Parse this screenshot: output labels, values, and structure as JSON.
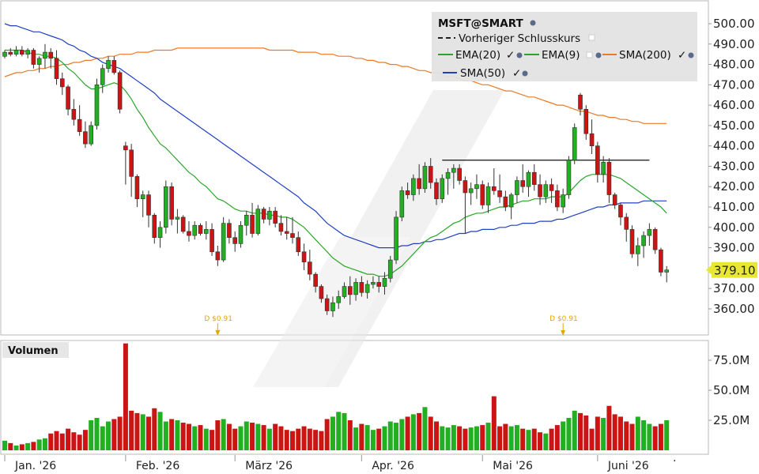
{
  "chart_data": [
    {
      "type": "candlestick",
      "symbol": "MSFT@SMART",
      "legend": {
        "entries": [
          {
            "label": "Vorheriger Schlusskurs",
            "color": "#222222",
            "style": "dashed"
          },
          {
            "label": "EMA(20)",
            "color": "#2aa52a"
          },
          {
            "label": "EMA(9)",
            "color": "#2aa52a"
          },
          {
            "label": "SMA(200)",
            "color": "#f07820"
          },
          {
            "label": "SMA(50)",
            "color": "#2040c0"
          }
        ],
        "placement": "top-right"
      },
      "ylim": [
        350,
        505
      ],
      "y_ticks": [
        "500.00",
        "490.00",
        "480.00",
        "470.00",
        "460.00",
        "450.00",
        "440.00",
        "430.00",
        "420.00",
        "410.00",
        "400.00",
        "390.00",
        "380.00",
        "370.00",
        "360.00"
      ],
      "y_tick_values": [
        500,
        490,
        480,
        470,
        460,
        450,
        440,
        430,
        420,
        410,
        400,
        390,
        380,
        370,
        360
      ],
      "x_months": [
        {
          "label": "Jan. '26",
          "day": 0
        },
        {
          "label": "Feb. '26",
          "day": 21
        },
        {
          "label": "März '26",
          "day": 40
        },
        {
          "label": "Apr. '26",
          "day": 62
        },
        {
          "label": "Mai '26",
          "day": 83
        },
        {
          "label": "Juni '26",
          "day": 103
        }
      ],
      "last_price": "379.10",
      "last_price_value": 379.1,
      "resistance_line": {
        "from_day": 76,
        "to_day": 112,
        "value": 433
      },
      "dividends": [
        {
          "label": "D $0.91",
          "day": 37
        },
        {
          "label": "D $0.91",
          "day": 97
        }
      ],
      "ohlc": [
        [
          484,
          487,
          483,
          486
        ],
        [
          486,
          488,
          484,
          485
        ],
        [
          485,
          489,
          484,
          487
        ],
        [
          487,
          489,
          484,
          485
        ],
        [
          485,
          488,
          483,
          487
        ],
        [
          487,
          488,
          478,
          480
        ],
        [
          480,
          484,
          476,
          483
        ],
        [
          483,
          490,
          478,
          486
        ],
        [
          486,
          488,
          478,
          483
        ],
        [
          483,
          487,
          470,
          473
        ],
        [
          473,
          476,
          465,
          469
        ],
        [
          469,
          470,
          455,
          458
        ],
        [
          458,
          463,
          450,
          453
        ],
        [
          453,
          460,
          445,
          447
        ],
        [
          447,
          452,
          439,
          441
        ],
        [
          441,
          452,
          440,
          450
        ],
        [
          450,
          473,
          448,
          470
        ],
        [
          470,
          480,
          466,
          478
        ],
        [
          478,
          484,
          476,
          482
        ],
        [
          482,
          484,
          475,
          476
        ],
        [
          476,
          477,
          456,
          458
        ],
        [
          440,
          442,
          421,
          438
        ],
        [
          438,
          441,
          415,
          425
        ],
        [
          425,
          426,
          410,
          414
        ],
        [
          414,
          418,
          405,
          416
        ],
        [
          416,
          418,
          400,
          406
        ],
        [
          406,
          407,
          392,
          395
        ],
        [
          395,
          403,
          390,
          400
        ],
        [
          400,
          423,
          397,
          420
        ],
        [
          420,
          422,
          401,
          404
        ],
        [
          404,
          409,
          397,
          405
        ],
        [
          405,
          406,
          397,
          398
        ],
        [
          398,
          403,
          393,
          396
        ],
        [
          396,
          403,
          394,
          401
        ],
        [
          401,
          402,
          396,
          397
        ],
        [
          397,
          403,
          394,
          399
        ],
        [
          399,
          402,
          386,
          388
        ],
        [
          388,
          391,
          381,
          384
        ],
        [
          384,
          405,
          383,
          402
        ],
        [
          402,
          404,
          392,
          395
        ],
        [
          395,
          398,
          388,
          392
        ],
        [
          392,
          403,
          390,
          401
        ],
        [
          401,
          408,
          396,
          406
        ],
        [
          406,
          412,
          395,
          397
        ],
        [
          397,
          411,
          396,
          409
        ],
        [
          409,
          410,
          402,
          404
        ],
        [
          404,
          410,
          401,
          408
        ],
        [
          408,
          410,
          400,
          402
        ],
        [
          402,
          406,
          396,
          398
        ],
        [
          398,
          405,
          394,
          397
        ],
        [
          397,
          405,
          392,
          395
        ],
        [
          395,
          398,
          386,
          388
        ],
        [
          388,
          392,
          379,
          383
        ],
        [
          383,
          389,
          374,
          377
        ],
        [
          377,
          378,
          368,
          371
        ],
        [
          371,
          372,
          363,
          365
        ],
        [
          365,
          367,
          357,
          359
        ],
        [
          359,
          366,
          356,
          363
        ],
        [
          363,
          369,
          360,
          366
        ],
        [
          366,
          373,
          365,
          371
        ],
        [
          371,
          376,
          362,
          367
        ],
        [
          367,
          375,
          364,
          373
        ],
        [
          373,
          376,
          366,
          368
        ],
        [
          368,
          374,
          365,
          372
        ],
        [
          372,
          376,
          370,
          373
        ],
        [
          373,
          376,
          368,
          371
        ],
        [
          371,
          378,
          367,
          375
        ],
        [
          375,
          386,
          373,
          384
        ],
        [
          384,
          408,
          382,
          405
        ],
        [
          405,
          420,
          403,
          418
        ],
        [
          418,
          422,
          414,
          416
        ],
        [
          416,
          426,
          413,
          424
        ],
        [
          424,
          431,
          416,
          419
        ],
        [
          419,
          432,
          417,
          430
        ],
        [
          430,
          434,
          419,
          422
        ],
        [
          422,
          424,
          411,
          414
        ],
        [
          414,
          426,
          412,
          424
        ],
        [
          424,
          429,
          416,
          427
        ],
        [
          427,
          431,
          419,
          429
        ],
        [
          429,
          431,
          421,
          423
        ],
        [
          423,
          425,
          397,
          417
        ],
        [
          417,
          422,
          411,
          419
        ],
        [
          419,
          426,
          414,
          421
        ],
        [
          421,
          423,
          409,
          411
        ],
        [
          411,
          422,
          407,
          420
        ],
        [
          420,
          429,
          416,
          418
        ],
        [
          418,
          426,
          412,
          415
        ],
        [
          415,
          418,
          408,
          410
        ],
        [
          410,
          417,
          404,
          416
        ],
        [
          416,
          425,
          412,
          423
        ],
        [
          423,
          431,
          417,
          420
        ],
        [
          420,
          428,
          415,
          427
        ],
        [
          427,
          431,
          418,
          421
        ],
        [
          421,
          426,
          411,
          415
        ],
        [
          415,
          423,
          412,
          421
        ],
        [
          421,
          424,
          412,
          418
        ],
        [
          418,
          421,
          408,
          410
        ],
        [
          410,
          419,
          407,
          416
        ],
        [
          416,
          435,
          414,
          433
        ],
        [
          433,
          451,
          431,
          449
        ],
        [
          465,
          466,
          455,
          458
        ],
        [
          458,
          460,
          443,
          446
        ],
        [
          446,
          453,
          436,
          440
        ],
        [
          440,
          442,
          422,
          426
        ],
        [
          426,
          435,
          422,
          432
        ],
        [
          432,
          434,
          412,
          416
        ],
        [
          416,
          417,
          409,
          411
        ],
        [
          411,
          412,
          401,
          405
        ],
        [
          405,
          407,
          393,
          399
        ],
        [
          399,
          401,
          385,
          387
        ],
        [
          387,
          395,
          381,
          391
        ],
        [
          391,
          398,
          385,
          396
        ],
        [
          396,
          402,
          391,
          399
        ],
        [
          399,
          400,
          387,
          389
        ],
        [
          389,
          390,
          376,
          378
        ],
        [
          378,
          381,
          373,
          379.1
        ]
      ],
      "ema20": [
        487,
        487,
        487,
        487,
        486,
        485,
        485,
        484,
        484,
        483,
        481,
        478,
        476,
        473,
        470,
        468,
        468,
        469,
        470,
        471,
        470,
        467,
        463,
        458,
        454,
        449,
        445,
        441,
        439,
        436,
        433,
        430,
        427,
        425,
        422,
        420,
        417,
        414,
        413,
        411,
        409,
        408,
        408,
        407,
        407,
        407,
        406,
        406,
        405,
        405,
        404,
        402,
        400,
        397,
        394,
        391,
        388,
        385,
        383,
        381,
        380,
        379,
        378,
        377,
        377,
        376,
        376,
        377,
        379,
        381,
        384,
        387,
        390,
        393,
        395,
        396,
        398,
        400,
        402,
        403,
        405,
        406,
        407,
        407,
        408,
        409,
        410,
        410,
        411,
        412,
        413,
        413,
        414,
        414,
        414,
        415,
        415,
        415,
        417,
        420,
        423,
        425,
        426,
        426,
        426,
        426,
        425,
        424,
        422,
        420,
        418,
        416,
        414,
        412,
        410,
        407
      ],
      "sma50": [
        500,
        499,
        499,
        498,
        497,
        496,
        496,
        495,
        494,
        493,
        492,
        490,
        489,
        487,
        486,
        484,
        483,
        481,
        480,
        479,
        478,
        476,
        474,
        472,
        470,
        468,
        466,
        463,
        461,
        459,
        457,
        455,
        453,
        451,
        449,
        447,
        445,
        443,
        441,
        439,
        437,
        435,
        433,
        431,
        429,
        427,
        425,
        423,
        421,
        419,
        417,
        415,
        412,
        410,
        408,
        405,
        402,
        400,
        398,
        396,
        395,
        394,
        393,
        392,
        391,
        390,
        390,
        390,
        390,
        391,
        391,
        392,
        392,
        393,
        393,
        394,
        394,
        395,
        396,
        397,
        397,
        398,
        398,
        399,
        399,
        399,
        400,
        400,
        401,
        401,
        402,
        402,
        402,
        403,
        403,
        403,
        404,
        404,
        405,
        406,
        407,
        408,
        409,
        410,
        410,
        411,
        411,
        412,
        412,
        412,
        412,
        413,
        413,
        413,
        413,
        413
      ],
      "sma200": [
        474,
        475,
        476,
        476,
        477,
        477,
        478,
        478,
        479,
        479,
        480,
        480,
        481,
        481,
        482,
        482,
        483,
        483,
        484,
        484,
        485,
        485,
        485,
        486,
        486,
        486,
        487,
        487,
        487,
        487,
        488,
        488,
        488,
        488,
        488,
        488,
        488,
        488,
        488,
        488,
        488,
        488,
        488,
        488,
        488,
        488,
        487,
        487,
        487,
        487,
        487,
        486,
        486,
        486,
        486,
        485,
        485,
        485,
        484,
        484,
        484,
        483,
        483,
        482,
        482,
        481,
        481,
        480,
        480,
        479,
        479,
        478,
        477,
        477,
        476,
        476,
        475,
        474,
        474,
        473,
        472,
        472,
        471,
        470,
        470,
        469,
        468,
        467,
        467,
        466,
        465,
        464,
        464,
        463,
        462,
        461,
        460,
        460,
        459,
        458,
        457,
        457,
        456,
        455,
        455,
        454,
        454,
        453,
        453,
        452,
        452,
        451,
        451,
        451,
        451,
        451
      ]
    },
    {
      "type": "bar",
      "title": "Volumen",
      "unit": "M",
      "ylim": [
        0,
        90
      ],
      "y_ticks": [
        "75.0M",
        "50.0M",
        "25.0M"
      ],
      "y_tick_values": [
        75,
        50,
        25
      ],
      "values": [
        8,
        6,
        4,
        5,
        6,
        7,
        9,
        10,
        14,
        16,
        14,
        18,
        15,
        13,
        17,
        25,
        27,
        20,
        24,
        26,
        28,
        89,
        33,
        31,
        30,
        28,
        35,
        32,
        24,
        26,
        25,
        23,
        22,
        20,
        21,
        18,
        17,
        25,
        26,
        22,
        18,
        20,
        24,
        23,
        22,
        21,
        18,
        22,
        20,
        17,
        16,
        18,
        20,
        18,
        17,
        16,
        26,
        28,
        32,
        31,
        25,
        19,
        22,
        21,
        17,
        18,
        20,
        24,
        23,
        26,
        28,
        30,
        31,
        36,
        28,
        24,
        20,
        19,
        21,
        20,
        18,
        19,
        20,
        21,
        23,
        45,
        20,
        22,
        20,
        21,
        18,
        17,
        18,
        15,
        14,
        18,
        21,
        24,
        27,
        33,
        31,
        29,
        18,
        28,
        27,
        37,
        30,
        28,
        24,
        22,
        28,
        25,
        22,
        20,
        22,
        25
      ]
    }
  ]
}
